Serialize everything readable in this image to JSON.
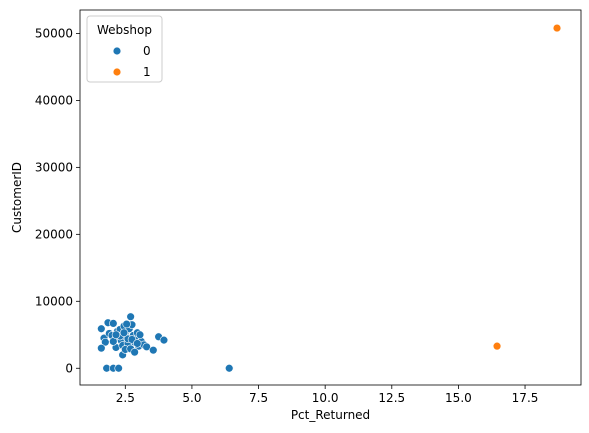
{
  "chart_data": {
    "type": "scatter",
    "title": "",
    "xlabel": "Pct_Returned",
    "ylabel": "CustomerID",
    "xlim": [
      0.8,
      19.6
    ],
    "ylim": [
      -2500,
      53500
    ],
    "xticks": [
      2.5,
      5.0,
      7.5,
      10.0,
      12.5,
      15.0,
      17.5
    ],
    "xtick_labels": [
      "2.5",
      "5.0",
      "7.5",
      "10.0",
      "12.5",
      "15.0",
      "17.5"
    ],
    "yticks": [
      0,
      10000,
      20000,
      30000,
      40000,
      50000
    ],
    "ytick_labels": [
      "0",
      "10000",
      "20000",
      "30000",
      "40000",
      "50000"
    ],
    "grid": false,
    "legend": {
      "title": "Webshop",
      "location": "top-left",
      "entries": [
        {
          "label": "0",
          "color": "#1f77b4"
        },
        {
          "label": "1",
          "color": "#ff7f0e"
        }
      ]
    },
    "series": [
      {
        "name": "0",
        "color": "#1f77b4",
        "points": [
          [
            1.6,
            5900
          ],
          [
            1.7,
            4500
          ],
          [
            1.75,
            3900
          ],
          [
            1.6,
            3000
          ],
          [
            1.85,
            6800
          ],
          [
            1.9,
            5200
          ],
          [
            2.05,
            6700
          ],
          [
            2.1,
            4300
          ],
          [
            2.0,
            4900
          ],
          [
            2.15,
            3100
          ],
          [
            2.2,
            5500
          ],
          [
            2.3,
            5800
          ],
          [
            2.35,
            4100
          ],
          [
            2.4,
            3400
          ],
          [
            2.45,
            6300
          ],
          [
            2.5,
            5100
          ],
          [
            2.55,
            4600
          ],
          [
            2.6,
            3700
          ],
          [
            2.65,
            5900
          ],
          [
            2.7,
            7700
          ],
          [
            2.75,
            6500
          ],
          [
            2.8,
            4900
          ],
          [
            2.85,
            3900
          ],
          [
            2.9,
            4300
          ],
          [
            2.95,
            5300
          ],
          [
            3.0,
            3300
          ],
          [
            3.1,
            4000
          ],
          [
            3.2,
            3500
          ],
          [
            3.3,
            3200
          ],
          [
            3.55,
            2700
          ],
          [
            3.75,
            4700
          ],
          [
            3.95,
            4200
          ],
          [
            2.4,
            2000
          ],
          [
            2.5,
            2800
          ],
          [
            2.7,
            2900
          ],
          [
            2.85,
            2400
          ],
          [
            2.6,
            4400
          ],
          [
            2.3,
            4800
          ],
          [
            2.45,
            5300
          ],
          [
            2.05,
            4000
          ],
          [
            2.55,
            6600
          ],
          [
            2.15,
            5000
          ],
          [
            2.75,
            4300
          ],
          [
            2.95,
            3700
          ],
          [
            3.05,
            5000
          ],
          [
            1.8,
            0
          ],
          [
            2.05,
            0
          ],
          [
            2.25,
            0
          ],
          [
            6.4,
            0
          ]
        ]
      },
      {
        "name": "1",
        "color": "#ff7f0e",
        "points": [
          [
            16.45,
            3300
          ],
          [
            18.7,
            50800
          ]
        ]
      }
    ]
  }
}
